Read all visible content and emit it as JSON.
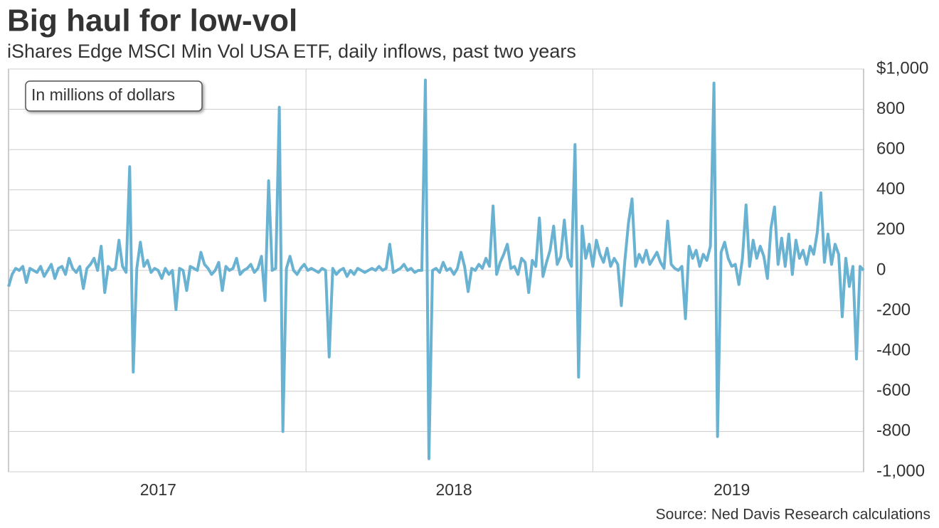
{
  "chart_data": {
    "type": "line",
    "title": "Big haul for low-vol",
    "subtitle": "iShares Edge MSCI Min Vol USA ETF, daily inflows, past two years",
    "annotation": "In millions of dollars",
    "source": "Source: Ned Davis Research calculations",
    "categories": [
      null,
      null,
      null,
      null,
      null,
      null,
      null,
      null,
      null,
      null,
      null,
      null,
      null,
      null,
      null,
      null,
      null,
      null,
      null,
      null,
      null,
      null,
      null,
      null,
      null,
      null,
      null,
      null,
      null,
      null,
      null,
      null,
      null,
      null,
      null,
      null,
      null,
      null,
      null,
      null,
      null,
      null,
      "2017",
      null,
      null,
      null,
      null,
      null,
      null,
      null,
      null,
      null,
      null,
      null,
      null,
      null,
      null,
      null,
      null,
      null,
      null,
      null,
      null,
      null,
      null,
      null,
      null,
      null,
      null,
      null,
      null,
      null,
      null,
      null,
      null,
      null,
      null,
      null,
      null,
      null,
      null,
      null,
      null,
      null,
      null,
      null,
      null,
      null,
      null,
      null,
      null,
      null,
      null,
      null,
      null,
      null,
      null,
      null,
      null,
      null,
      null,
      null,
      null,
      null,
      null,
      null,
      null,
      null,
      null,
      null,
      null,
      null,
      null,
      null,
      null,
      null,
      null,
      null,
      null,
      null,
      null,
      null,
      null,
      null,
      null,
      "2018",
      null,
      null,
      null,
      null,
      null,
      null,
      null,
      null,
      null,
      null,
      null,
      null,
      null,
      null,
      null,
      null,
      null,
      null,
      null,
      null,
      null,
      null,
      null,
      null,
      null,
      null,
      null,
      null,
      null,
      null,
      null,
      null,
      null,
      null,
      null,
      null,
      null,
      null,
      null,
      null,
      null,
      null,
      null,
      null,
      null,
      null,
      null,
      null,
      null,
      null,
      null,
      null,
      null,
      null,
      null,
      null,
      null,
      null,
      null,
      null,
      null,
      null,
      null,
      null,
      null,
      null,
      null,
      null,
      null,
      null,
      null,
      null,
      null,
      null,
      null,
      null,
      null,
      "2019",
      null,
      null,
      null,
      null,
      null,
      null,
      null,
      null,
      null,
      null,
      null,
      null,
      null,
      null,
      null,
      null,
      null,
      null,
      null,
      null,
      null,
      null,
      null,
      null,
      null,
      null,
      null,
      null,
      null,
      null,
      null,
      null,
      null,
      null,
      null,
      null,
      null
    ],
    "series": [
      {
        "name": "Daily inflows",
        "color": "#6ab2d2",
        "values": [
          -80,
          -20,
          10,
          0,
          20,
          -60,
          10,
          0,
          -10,
          20,
          -30,
          0,
          30,
          -40,
          10,
          20,
          -20,
          60,
          10,
          -10,
          20,
          -90,
          10,
          30,
          60,
          0,
          120,
          -110,
          20,
          0,
          10,
          150,
          20,
          -10,
          515,
          -505,
          10,
          140,
          20,
          50,
          -10,
          10,
          0,
          -40,
          10,
          -20,
          0,
          -195,
          10,
          0,
          -100,
          20,
          10,
          0,
          90,
          30,
          10,
          -20,
          0,
          40,
          -100,
          20,
          0,
          10,
          60,
          -20,
          0,
          10,
          30,
          -10,
          10,
          70,
          -150,
          445,
          0,
          10,
          810,
          -800,
          10,
          70,
          0,
          -20,
          10,
          30,
          0,
          10,
          0,
          -10,
          10,
          0,
          -430,
          10,
          -20,
          0,
          10,
          -30,
          0,
          -20,
          10,
          0,
          -10,
          0,
          10,
          0,
          20,
          0,
          10,
          130,
          -10,
          0,
          10,
          30,
          0,
          10,
          -10,
          0,
          0,
          945,
          -935,
          0,
          10,
          -10,
          40,
          0,
          10,
          -20,
          10,
          90,
          20,
          -105,
          10,
          0,
          30,
          10,
          60,
          20,
          320,
          -20,
          40,
          80,
          130,
          10,
          20,
          -20,
          60,
          40,
          -110,
          50,
          20,
          260,
          -30,
          40,
          100,
          220,
          30,
          70,
          250,
          60,
          20,
          625,
          -530,
          220,
          60,
          130,
          20,
          150,
          80,
          40,
          110,
          20,
          60,
          30,
          -175,
          50,
          235,
          355,
          20,
          80,
          40,
          100,
          30,
          60,
          90,
          40,
          10,
          245,
          30,
          10,
          0,
          20,
          -240,
          120,
          60,
          100,
          20,
          80,
          50,
          120,
          930,
          -825,
          90,
          140,
          60,
          20,
          30,
          -70,
          60,
          325,
          20,
          150,
          60,
          120,
          70,
          -40,
          210,
          315,
          30,
          160,
          20,
          180,
          -20,
          150,
          60,
          100,
          30,
          120,
          80,
          190,
          385,
          40,
          180,
          30,
          130,
          80,
          -230,
          60,
          -80,
          20,
          -440,
          20,
          0
        ]
      }
    ],
    "ylim": [
      -1000,
      1000
    ],
    "yticks": [
      {
        "value": -1000,
        "label": "-1,000"
      },
      -800,
      -600,
      -400,
      -200,
      0,
      200,
      400,
      600,
      800,
      {
        "value": 1000,
        "label": "$1,000"
      }
    ],
    "grid": true
  }
}
